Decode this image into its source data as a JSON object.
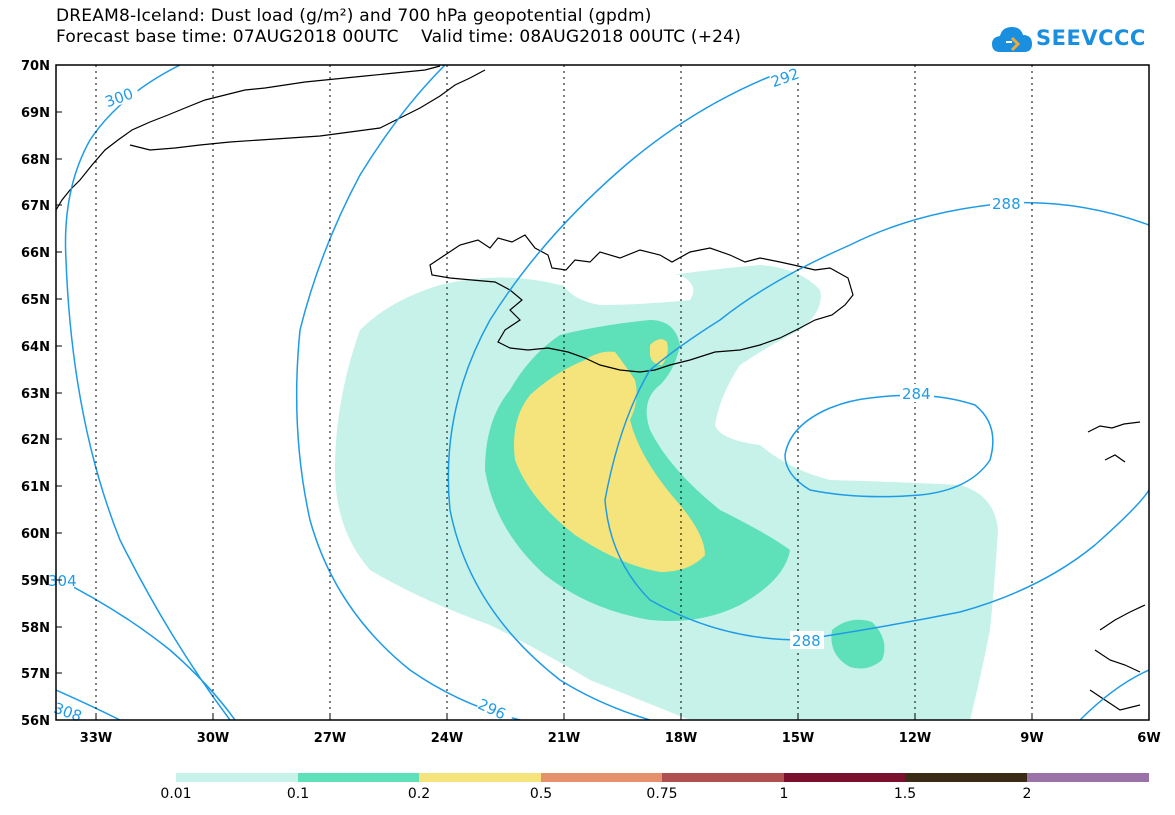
{
  "title": {
    "line1": "DREAM8-Iceland: Dust load (g/m²) and 700 hPa geopotential (gpdm)",
    "line2": "Forecast base time: 07AUG2018 00UTC    Valid time: 08AUG2018 00UTC (+24)"
  },
  "logo": {
    "text": "SEEVCCC",
    "icon": "cloud-icon"
  },
  "map": {
    "lat_labels": [
      "70N",
      "69N",
      "68N",
      "67N",
      "66N",
      "65N",
      "64N",
      "63N",
      "62N",
      "61N",
      "60N",
      "59N",
      "58N",
      "57N",
      "56N"
    ],
    "lon_labels": [
      "33W",
      "30W",
      "27W",
      "24W",
      "21W",
      "18W",
      "15W",
      "12W",
      "9W",
      "6W"
    ],
    "contour_labels": [
      "300",
      "292",
      "288",
      "284",
      "288",
      "296",
      "304",
      "308",
      "288"
    ]
  },
  "colorbar": {
    "colors": [
      "#c6f2ea",
      "#5ee0b8",
      "#f5e47c",
      "#e5926c",
      "#b04f4f",
      "#7a0f2e",
      "#3b2a15",
      "#9a72a8"
    ],
    "labels": [
      "0.01",
      "0.1",
      "0.2",
      "0.5",
      "0.75",
      "1",
      "1.5",
      "2"
    ]
  }
}
